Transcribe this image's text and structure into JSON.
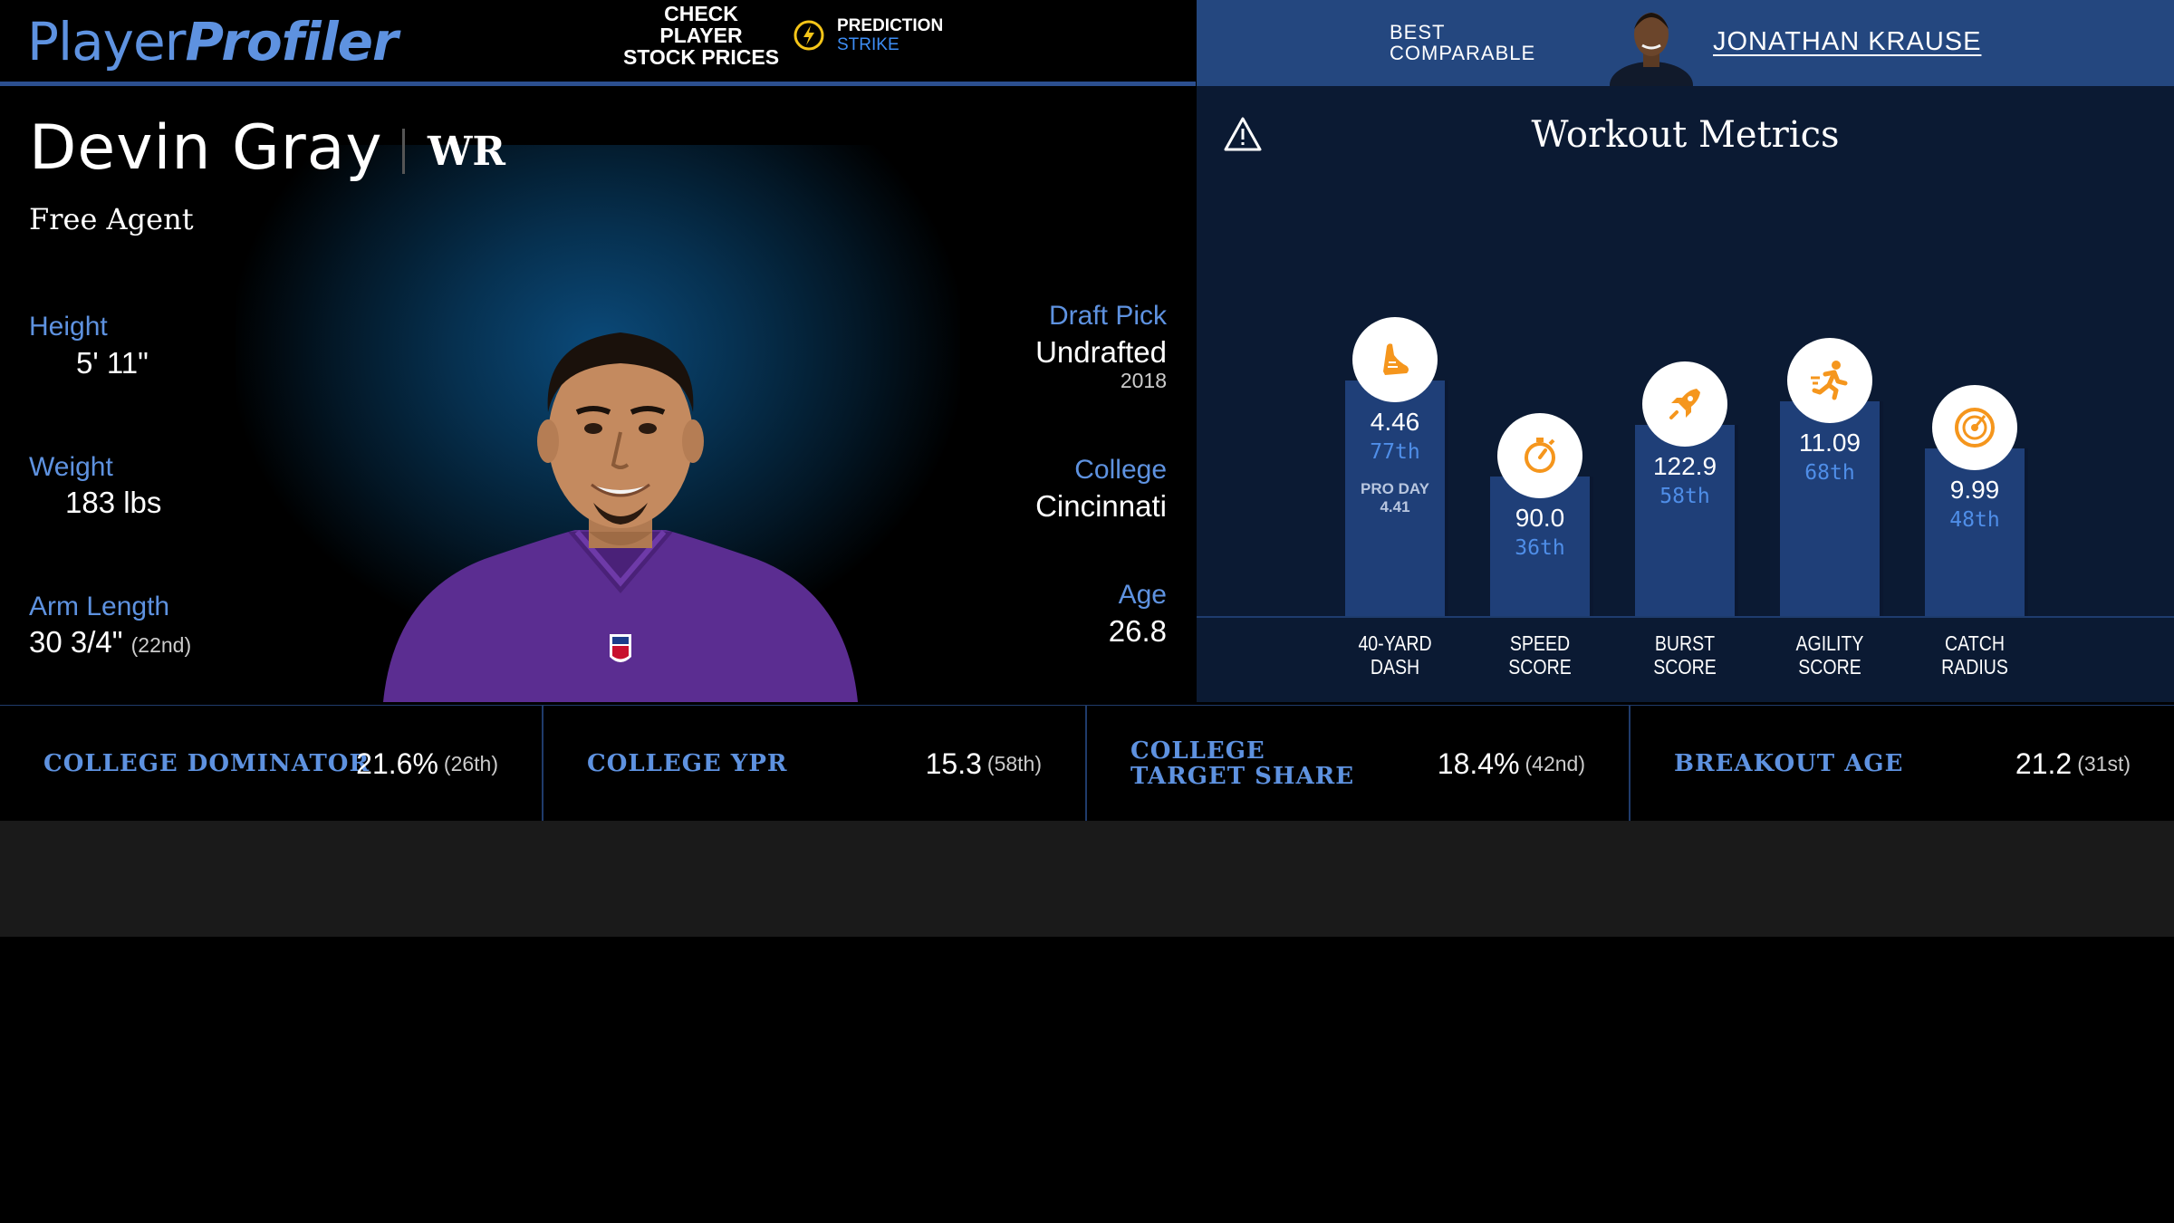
{
  "header": {
    "logo_part1": "Player",
    "logo_part2": "Profiler",
    "promo_cta": "CHECK PLAYER STOCK PRICES",
    "promo_brand_1": "PREDICTION",
    "promo_brand_2": "STRIKE",
    "best_comparable_label": "BEST COMPARABLE",
    "best_comparable_name": "JONATHAN KRAUSE"
  },
  "player": {
    "name": "Devin Gray",
    "position": "WR",
    "team": "Free Agent",
    "height_label": "Height",
    "height": "5' 11\"",
    "weight_label": "Weight",
    "weight": "183 lbs",
    "arm_label": "Arm Length",
    "arm": "30 3/4\"",
    "arm_rank": "(22nd)",
    "draft_label": "Draft Pick",
    "draft": "Undrafted",
    "draft_year": "2018",
    "college_label": "College",
    "college": "Cincinnati",
    "age_label": "Age",
    "age": "26.8"
  },
  "workout": {
    "title": "Workout Metrics",
    "metrics": [
      {
        "label": "40-YARD DASH",
        "value": "4.46",
        "percentile": "77th",
        "percentile_value": 77,
        "extra": "PRO DAY 4.41",
        "icon": "shoe-icon"
      },
      {
        "label": "SPEED SCORE",
        "value": "90.0",
        "percentile": "36th",
        "percentile_value": 36,
        "extra": "",
        "icon": "stopwatch-icon"
      },
      {
        "label": "BURST SCORE",
        "value": "122.9",
        "percentile": "58th",
        "percentile_value": 58,
        "extra": "",
        "icon": "rocket-icon"
      },
      {
        "label": "AGILITY SCORE",
        "value": "11.09",
        "percentile": "68th",
        "percentile_value": 68,
        "extra": "",
        "icon": "runner-icon"
      },
      {
        "label": "CATCH RADIUS",
        "value": "9.99",
        "percentile": "48th",
        "percentile_value": 48,
        "extra": "",
        "icon": "target-icon"
      }
    ]
  },
  "stats": [
    {
      "label": "COLLEGE DOMINATOR",
      "value": "21.6%",
      "rank": "(26th)"
    },
    {
      "label": "COLLEGE YPR",
      "value": "15.3",
      "rank": "(58th)"
    },
    {
      "label": "COLLEGE TARGET SHARE",
      "value": "18.4%",
      "rank": "(42nd)"
    },
    {
      "label": "BREAKOUT AGE",
      "value": "21.2",
      "rank": "(31st)"
    }
  ],
  "colors": {
    "accent": "#5e92e0",
    "bar": "#1f3f78",
    "icon_orange": "#f5961d",
    "header_right": "#24477f"
  }
}
